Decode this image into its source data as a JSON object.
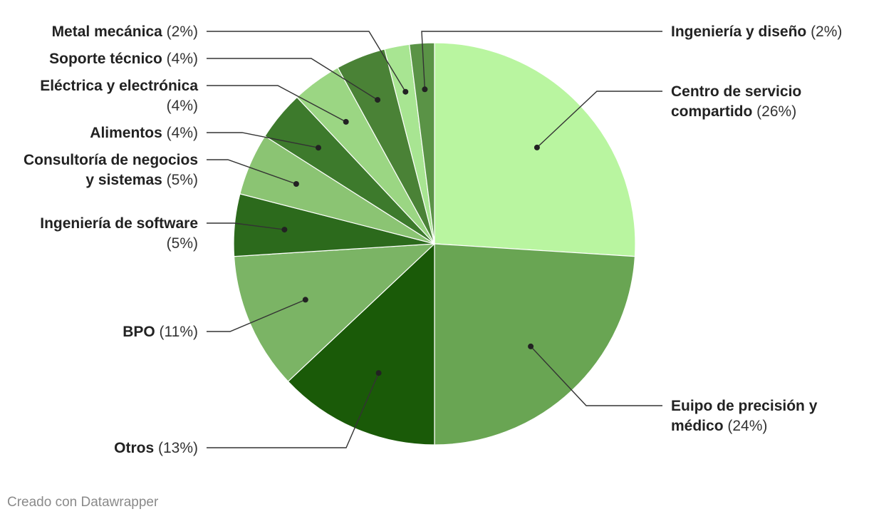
{
  "chart_data": {
    "type": "pie",
    "slices": [
      {
        "label": "Centro de servicio compartido",
        "value": 26,
        "value_label": "(26%)",
        "color": "#b9f5a0"
      },
      {
        "label": "Euipo de precisión y médico",
        "value": 24,
        "value_label": "(24%)",
        "color": "#69a553"
      },
      {
        "label": "Otros",
        "value": 13,
        "value_label": "(13%)",
        "color": "#1a5a08"
      },
      {
        "label": "BPO",
        "value": 11,
        "value_label": "(11%)",
        "color": "#7bb465"
      },
      {
        "label": "Ingeniería de software",
        "value": 5,
        "value_label": "(5%)",
        "color": "#2c6a1c"
      },
      {
        "label": "Consultoría de negocios y sistemas",
        "value": 5,
        "value_label": "(5%)",
        "color": "#8bc473"
      },
      {
        "label": "Alimentos",
        "value": 4,
        "value_label": "(4%)",
        "color": "#3d7a2c"
      },
      {
        "label": "Eléctrica y electrónica",
        "value": 4,
        "value_label": "(4%)",
        "color": "#9bd683"
      },
      {
        "label": "Soporte técnico",
        "value": 4,
        "value_label": "(4%)",
        "color": "#4a8236"
      },
      {
        "label": "Metal mecánica",
        "value": 2,
        "value_label": "(2%)",
        "color": "#a8e592"
      },
      {
        "label": "Ingeniería y diseño",
        "value": 2,
        "value_label": "(2%)",
        "color": "#5a9346"
      }
    ],
    "start_angle_deg": 0,
    "direction": "clockwise",
    "legend": "none",
    "labels": "outside-with-leader-lines"
  },
  "footer": {
    "credit": "Creado con Datawrapper"
  }
}
